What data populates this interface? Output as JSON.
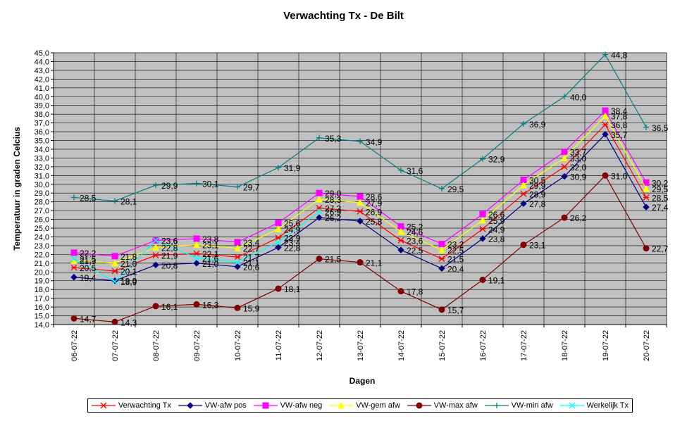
{
  "chart_data": {
    "type": "line",
    "title": "Verwachting Tx - De Bilt",
    "xlabel": "Dagen",
    "ylabel": "Temperatuur in graden Celcius",
    "ylim": [
      14,
      45
    ],
    "ystep": 1,
    "grid": true,
    "legend_position": "bottom",
    "plot_background": "#c0c0c0",
    "categories": [
      "06-07-22",
      "07-07-22",
      "08-07-22",
      "09-07-22",
      "10-07-22",
      "11-07-22",
      "12-07-22",
      "13-07-22",
      "14-07-22",
      "15-07-22",
      "16-07-22",
      "17-07-22",
      "18-07-22",
      "19-07-22",
      "20-07-22"
    ],
    "series": [
      {
        "name": "Verwachting Tx",
        "color": "#ff0000",
        "marker": "star",
        "values": [
          20.5,
          20.1,
          21.9,
          22.1,
          21.7,
          23.9,
          27.3,
          26.9,
          23.6,
          21.5,
          24.9,
          28.9,
          32.0,
          36.8,
          28.5
        ]
      },
      {
        "name": "VW-afw pos",
        "color": "#000080",
        "marker": "diamond",
        "values": [
          19.4,
          19.0,
          20.8,
          21.0,
          20.6,
          22.8,
          26.2,
          25.8,
          22.5,
          20.4,
          23.8,
          27.8,
          30.9,
          35.7,
          27.4
        ]
      },
      {
        "name": "VW-afw neg",
        "color": "#ff00ff",
        "marker": "square",
        "values": [
          22.2,
          21.8,
          23.6,
          23.8,
          23.4,
          25.6,
          29.0,
          28.6,
          25.2,
          23.2,
          26.6,
          30.5,
          33.7,
          38.4,
          30.2
        ]
      },
      {
        "name": "VW-gem afw",
        "color": "#ffff00",
        "marker": "triangle",
        "values": [
          21.3,
          21.0,
          22.8,
          23.1,
          22.7,
          24.9,
          28.3,
          27.9,
          24.6,
          22.5,
          25.9,
          29.9,
          33.0,
          37.8,
          29.5
        ]
      },
      {
        "name": "VW-max afw",
        "color": "#800000",
        "marker": "circle",
        "values": [
          14.7,
          14.3,
          16.1,
          16.3,
          15.9,
          18.1,
          21.5,
          21.1,
          17.8,
          15.7,
          19.1,
          23.1,
          26.2,
          31.0,
          22.7
        ]
      },
      {
        "name": "VW-min afw",
        "color": "#008080",
        "marker": "plus",
        "values": [
          28.5,
          28.1,
          29.9,
          30.1,
          29.7,
          31.9,
          35.3,
          34.9,
          31.6,
          29.5,
          32.9,
          36.9,
          40.0,
          44.8,
          36.5
        ]
      },
      {
        "name": "Werkelijk Tx",
        "color": "#00ffff",
        "marker": "x",
        "values": [
          21.5,
          18.9,
          23.6,
          21.6,
          21.1,
          23.4,
          26.9,
          null,
          null,
          null,
          null,
          null,
          null,
          null,
          null
        ]
      }
    ]
  }
}
